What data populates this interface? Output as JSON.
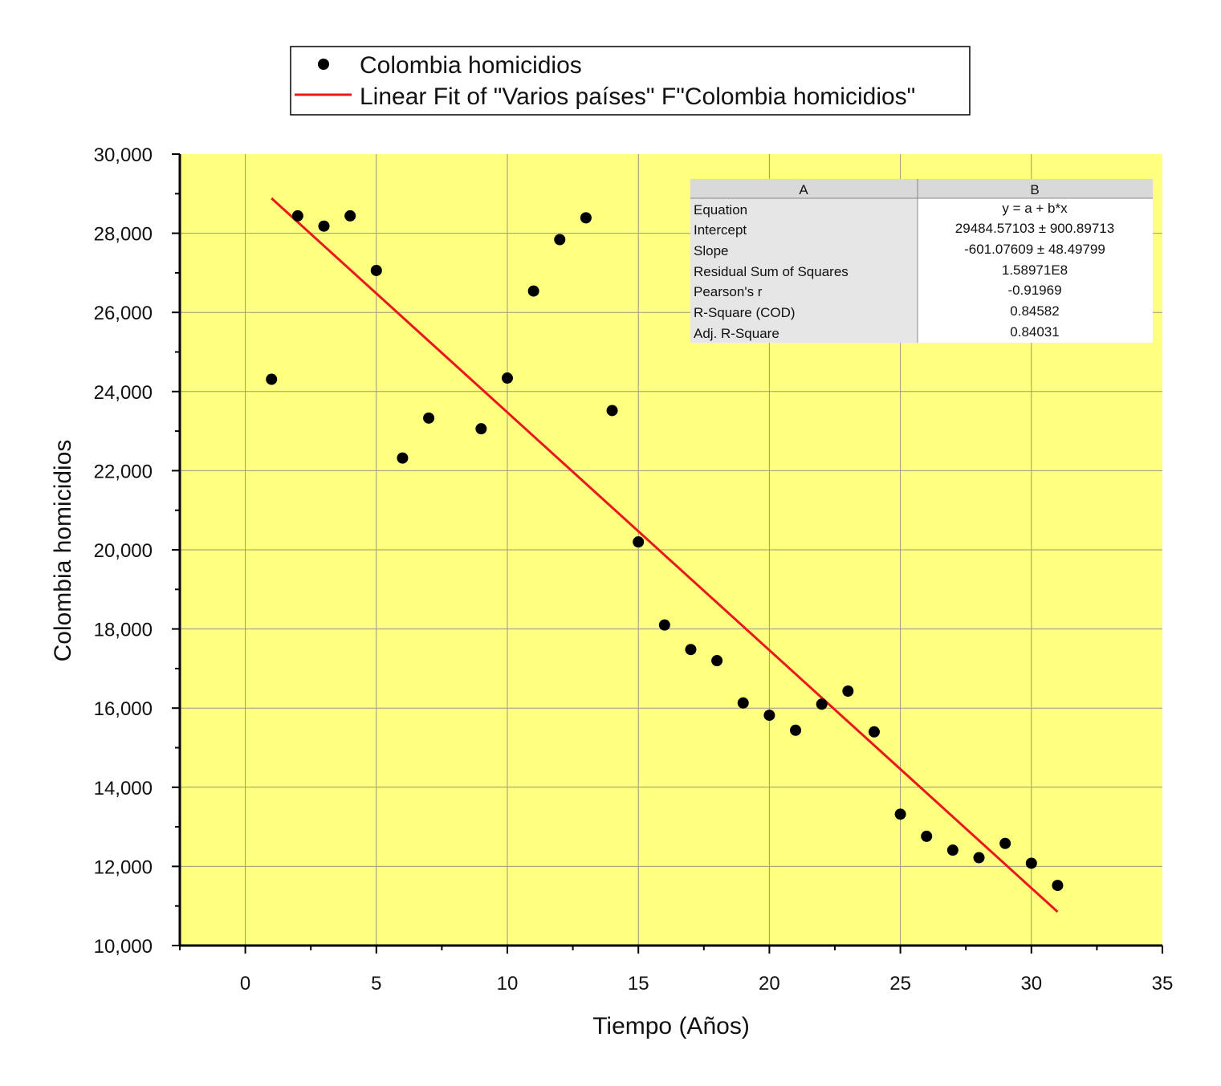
{
  "chart_data": {
    "type": "scatter",
    "title": "",
    "xlabel": "Tiempo (Años)",
    "ylabel": "Colombia homicidios",
    "xlim": [
      -2.5,
      35
    ],
    "ylim": [
      10000,
      30000
    ],
    "x_ticks": [
      0,
      5,
      10,
      15,
      20,
      25,
      30,
      35
    ],
    "y_ticks": [
      10000,
      12000,
      14000,
      16000,
      18000,
      20000,
      22000,
      24000,
      26000,
      28000,
      30000
    ],
    "x_tick_labels": [
      "0",
      "5",
      "10",
      "15",
      "20",
      "25",
      "30",
      "35"
    ],
    "y_tick_labels": [
      "10,000",
      "12,000",
      "14,000",
      "16,000",
      "18,000",
      "20,000",
      "22,000",
      "24,000",
      "26,000",
      "28,000",
      "30,000"
    ],
    "grid": true,
    "background_color": "#FFFF80",
    "legend_position": "top-center",
    "series": [
      {
        "name": "Colombia homicidios",
        "kind": "scatter",
        "color": "#000000",
        "x": [
          1,
          2,
          3,
          4,
          5,
          6,
          7,
          9,
          10,
          11,
          12,
          13,
          14,
          15,
          16,
          17,
          18,
          19,
          20,
          21,
          22,
          23,
          24,
          25,
          26,
          27,
          28,
          29,
          30,
          31
        ],
        "y": [
          24310,
          28440,
          28180,
          28440,
          27060,
          22320,
          23330,
          23060,
          24340,
          26540,
          27840,
          28390,
          23520,
          20200,
          18100,
          17480,
          17200,
          16130,
          15820,
          15440,
          16100,
          16430,
          15400,
          13320,
          12760,
          12410,
          12220,
          12580,
          12080,
          11520
        ]
      },
      {
        "name": "Linear Fit of \"Varios países\" F\"Colombia homicidios\"",
        "kind": "line",
        "color": "#E8181B",
        "x": [
          1,
          31
        ],
        "y": [
          28883.49,
          10851.21
        ]
      }
    ],
    "stats_table": {
      "headers": [
        "A",
        "B"
      ],
      "rows": [
        [
          "Equation",
          "y = a + b*x"
        ],
        [
          "Intercept",
          "29484.57103 ± 900.89713"
        ],
        [
          "Slope",
          "-601.07609 ± 48.49799"
        ],
        [
          "Residual Sum of Squares",
          "1.58971E8"
        ],
        [
          "Pearson's r",
          "-0.91969"
        ],
        [
          "R-Square (COD)",
          "0.84582"
        ],
        [
          "Adj. R-Square",
          "0.84031"
        ]
      ]
    }
  }
}
